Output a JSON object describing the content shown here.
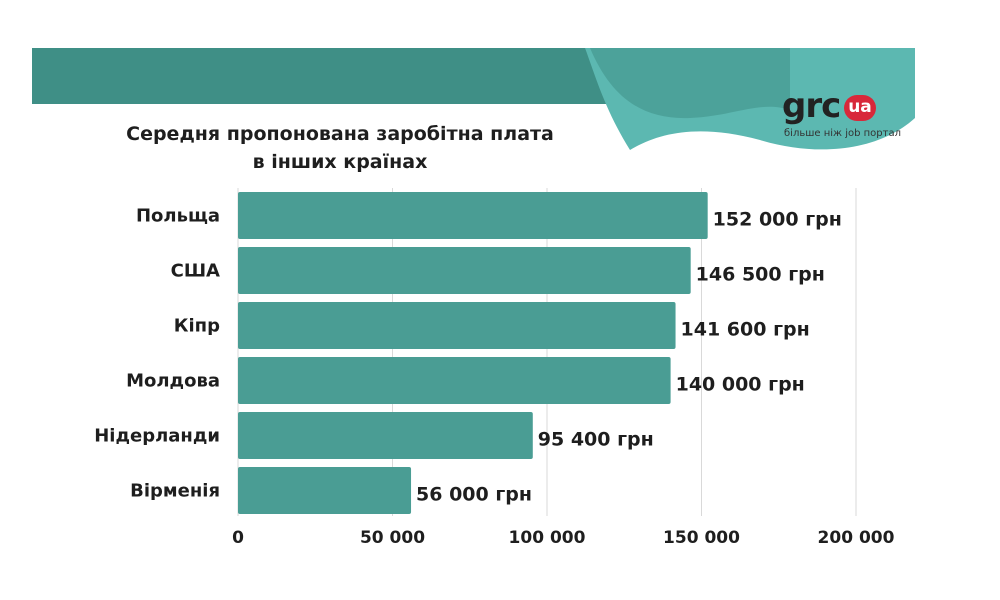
{
  "title": {
    "line1": "Середня пропонована заробітна плата",
    "line2": "в інших країнах"
  },
  "logo": {
    "name": "grc",
    "badge": "ua",
    "tagline": "більше ніж job портал"
  },
  "colors": {
    "bar": "#4a9d94",
    "banner_dark": "#3f8f86",
    "banner_light": "#5cb8b1",
    "text": "#1e1e1e",
    "grid": "#d9d9d9",
    "badge": "#d8283a"
  },
  "chart_data": {
    "type": "bar",
    "orientation": "horizontal",
    "title": "Середня пропонована заробітна плата в інших країнах",
    "categories": [
      "Польща",
      "США",
      "Кіпр",
      "Молдова",
      "Нідерланди",
      "Вірменія"
    ],
    "values": [
      152000,
      146500,
      141600,
      140000,
      95400,
      56000
    ],
    "value_labels": [
      "152 000 грн",
      "146 500 грн",
      "141 600 грн",
      "140 000 грн",
      "95 400 грн",
      "56 000 грн"
    ],
    "xlim": [
      0,
      200000
    ],
    "xticks": [
      0,
      50000,
      100000,
      150000,
      200000
    ],
    "xtick_labels": [
      "0",
      "50 000",
      "100 000",
      "150 000",
      "200 000"
    ],
    "xlabel": "",
    "ylabel": "",
    "grid": true,
    "legend": "none"
  }
}
